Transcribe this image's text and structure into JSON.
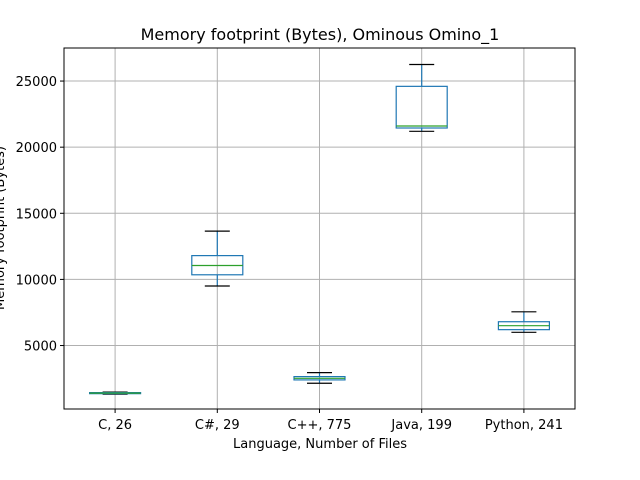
{
  "chart_data": {
    "type": "boxplot",
    "title": "Memory footprint (Bytes), Ominous Omino_1",
    "xlabel": "Language, Number of Files",
    "ylabel": "Memory footprint (Bytes)",
    "ylim": [
      200,
      27500
    ],
    "yticks": [
      5000,
      10000,
      15000,
      20000,
      25000
    ],
    "grid": true,
    "colors": {
      "box": "#1f77b4",
      "median": "#2ca02c",
      "whisker": "#000000",
      "grid": "#b0b0b0"
    },
    "categories": [
      "C, 26",
      "C#, 29",
      "C++, 775",
      "Java, 199",
      "Python, 241"
    ],
    "boxes": [
      {
        "whislo": 1320,
        "q1": 1360,
        "med": 1400,
        "q3": 1440,
        "whishi": 1480
      },
      {
        "whislo": 9500,
        "q1": 10350,
        "med": 11050,
        "q3": 11800,
        "whishi": 13650
      },
      {
        "whislo": 2150,
        "q1": 2400,
        "med": 2520,
        "q3": 2650,
        "whishi": 2950
      },
      {
        "whislo": 21200,
        "q1": 21450,
        "med": 21600,
        "q3": 24600,
        "whishi": 26250
      },
      {
        "whislo": 6000,
        "q1": 6200,
        "med": 6500,
        "q3": 6800,
        "whishi": 7550
      }
    ]
  }
}
